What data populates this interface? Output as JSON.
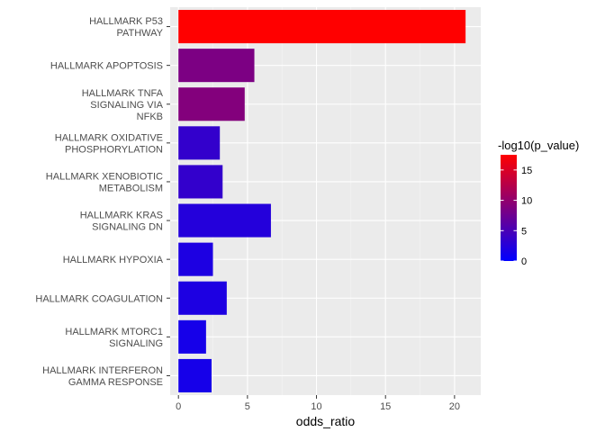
{
  "chart_data": {
    "type": "bar",
    "orientation": "horizontal",
    "categories": [
      [
        "HALLMARK P53",
        "PATHWAY"
      ],
      [
        "HALLMARK APOPTOSIS"
      ],
      [
        "HALLMARK TNFA",
        "SIGNALING VIA",
        "NFKB"
      ],
      [
        "HALLMARK OXIDATIVE",
        "PHOSPHORYLATION"
      ],
      [
        "HALLMARK XENOBIOTIC",
        "METABOLISM"
      ],
      [
        "HALLMARK KRAS",
        "SIGNALING DN"
      ],
      [
        "HALLMARK HYPOXIA"
      ],
      [
        "HALLMARK COAGULATION"
      ],
      [
        "HALLMARK MTORC1",
        "SIGNALING"
      ],
      [
        "HALLMARK INTERFERON",
        "GAMMA RESPONSE"
      ]
    ],
    "values": [
      20.8,
      5.5,
      4.8,
      3.0,
      3.2,
      6.7,
      2.5,
      3.5,
      2.0,
      2.4
    ],
    "color_values": [
      17.5,
      8.5,
      9.0,
      3.5,
      3.5,
      2.5,
      2.0,
      2.0,
      1.5,
      1.5
    ],
    "xlabel": "odds_ratio",
    "ylabel": "",
    "xlim": [
      -0.6,
      21.9
    ],
    "xticks": [
      0,
      5,
      10,
      15,
      20
    ],
    "grid": true,
    "legend": {
      "title": "-log10(p_value)",
      "placement": "right",
      "ticks": [
        0,
        5,
        10,
        15
      ],
      "range": [
        0,
        17.5
      ],
      "color_low": "#0000ff",
      "color_high": "#ff0000"
    },
    "panel_background": "#ebebeb"
  }
}
